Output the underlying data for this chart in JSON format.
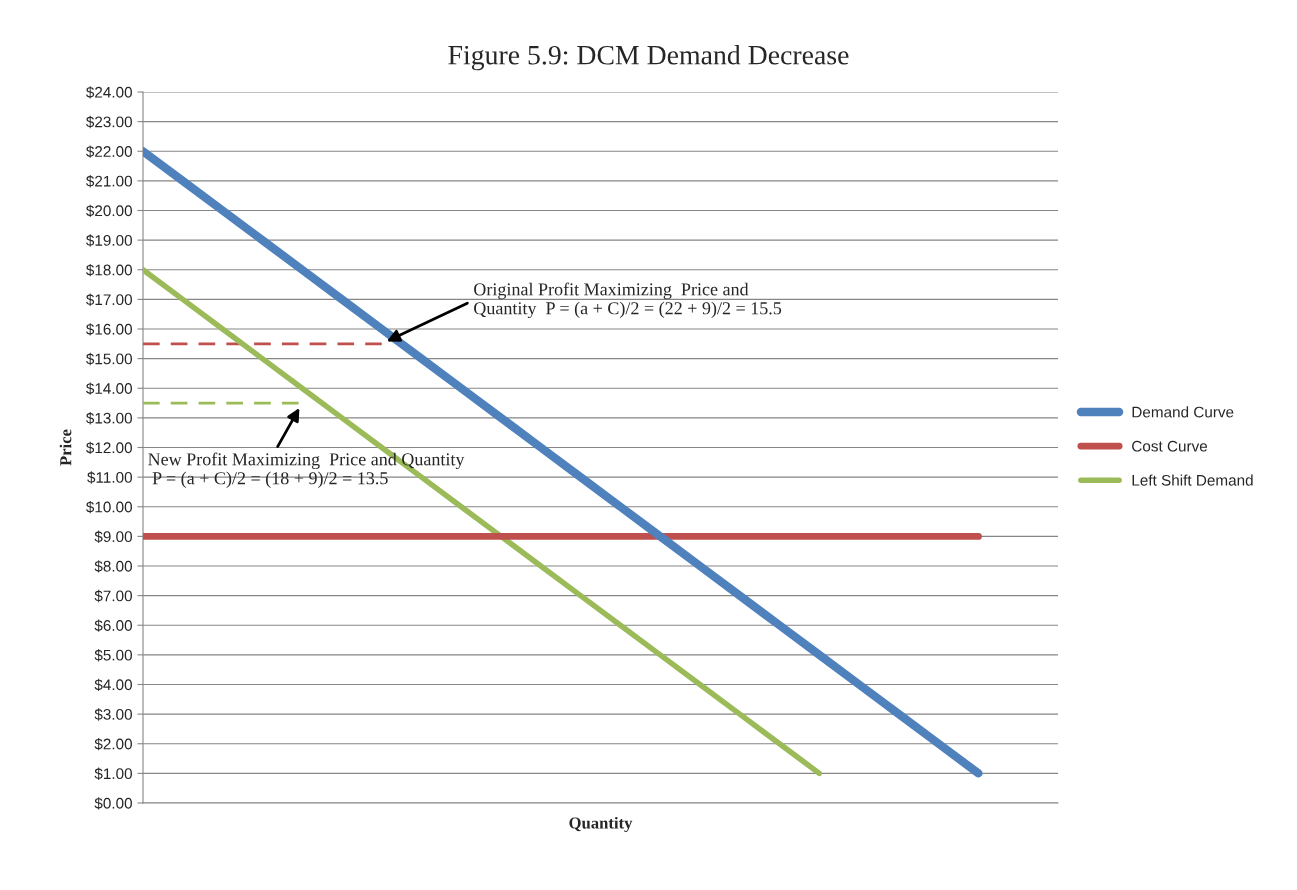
{
  "chart_data": {
    "type": "line",
    "title": "Figure 5.9: DCM Demand Decrease",
    "xlabel": "Quantity",
    "ylabel": "Price",
    "categories": [
      null,
      null,
      null,
      null,
      null,
      null,
      null,
      null,
      null,
      null,
      null,
      null,
      null,
      null,
      null,
      null,
      null,
      null,
      null,
      null,
      null,
      null,
      null,
      null
    ],
    "ylim": [
      0,
      24
    ],
    "yticks": [
      {
        "value": 0,
        "label": "$0.00"
      },
      {
        "value": 1,
        "label": "$1.00"
      },
      {
        "value": 2,
        "label": "$2.00"
      },
      {
        "value": 3,
        "label": "$3.00"
      },
      {
        "value": 4,
        "label": "$4.00"
      },
      {
        "value": 5,
        "label": "$5.00"
      },
      {
        "value": 6,
        "label": "$6.00"
      },
      {
        "value": 7,
        "label": "$7.00"
      },
      {
        "value": 8,
        "label": "$8.00"
      },
      {
        "value": 9,
        "label": "$9.00"
      },
      {
        "value": 10,
        "label": "$10.00"
      },
      {
        "value": 11,
        "label": "$11.00"
      },
      {
        "value": 12,
        "label": "$12.00"
      },
      {
        "value": 13,
        "label": "$13.00"
      },
      {
        "value": 14,
        "label": "$14.00"
      },
      {
        "value": 15,
        "label": "$15.00"
      },
      {
        "value": 16,
        "label": "$16.00"
      },
      {
        "value": 17,
        "label": "$17.00"
      },
      {
        "value": 18,
        "label": "$18.00"
      },
      {
        "value": 19,
        "label": "$19.00"
      },
      {
        "value": 20,
        "label": "$20.00"
      },
      {
        "value": 21,
        "label": "$21.00"
      },
      {
        "value": 22,
        "label": "$22.00"
      },
      {
        "value": 23,
        "label": "$23.00"
      },
      {
        "value": 24,
        "label": "$24.00"
      }
    ],
    "tick_labels": "y",
    "grid": "y",
    "legend": "right",
    "marker": "none",
    "series": [
      {
        "name": "Demand Curve",
        "color": "#4f81bd",
        "values": [
          22,
          21,
          20,
          19,
          18,
          17,
          16,
          15,
          14,
          13,
          12,
          11,
          10,
          9,
          8,
          7,
          6,
          5,
          4,
          3,
          2,
          1,
          null,
          null
        ]
      },
      {
        "name": "Cost Curve",
        "color": "#c0504d",
        "values": [
          9,
          9,
          9,
          9,
          9,
          9,
          9,
          9,
          9,
          9,
          9,
          9,
          9,
          9,
          9,
          9,
          9,
          9,
          9,
          9,
          9,
          9,
          null,
          null
        ]
      },
      {
        "name": "Left Shift Demand",
        "color": "#9bbb59",
        "values": [
          18,
          17,
          16,
          15,
          14,
          13,
          12,
          11,
          10,
          9,
          8,
          7,
          6,
          5,
          4,
          3,
          2,
          1,
          null,
          null,
          null,
          null,
          null,
          null
        ]
      },
      {
        "color": "#c0504d",
        "line_style": "dashed",
        "values": [
          15.5,
          15.5,
          15.5,
          15.5,
          15.5,
          15.5,
          15.5,
          null,
          null,
          null,
          null,
          null,
          null,
          null,
          null,
          null,
          null,
          null,
          null,
          null,
          null,
          null,
          null,
          null
        ]
      },
      {
        "color": "#9bbb59",
        "line_style": "dashed",
        "values": [
          13.5,
          13.5,
          13.5,
          13.5,
          13.5,
          null,
          null,
          null,
          null,
          null,
          null,
          null,
          null,
          null,
          null,
          null,
          null,
          null,
          null,
          null,
          null,
          null,
          null,
          null
        ]
      }
    ],
    "annotations": [
      "Original Profit Maximizing  Price and\nQuantity  P = (a + C)/2 = (22 + 9)/2 = 15.5",
      "New Profit Maximizing  Price and Quantity\n P = (a + C)/2 = (18 + 9)/2 = 13.5"
    ]
  }
}
